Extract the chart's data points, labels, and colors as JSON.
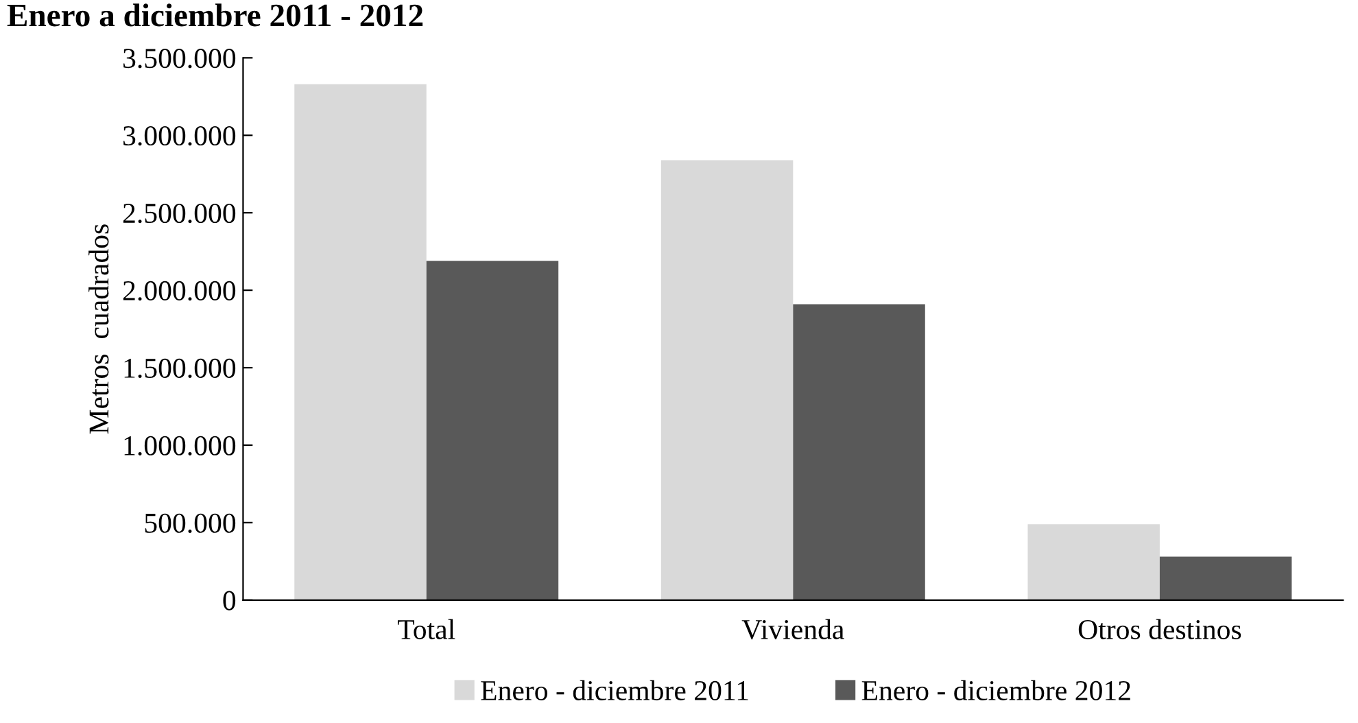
{
  "chart_data": {
    "type": "bar",
    "title": "Enero a diciembre 2011 - 2012",
    "ylabel": "Metros  cuadrados",
    "categories": [
      "Total",
      "Vivienda",
      "Otros destinos"
    ],
    "series": [
      {
        "name": "Enero - diciembre 2011",
        "color": "#d9d9d9",
        "values": [
          3330000,
          2840000,
          490000
        ]
      },
      {
        "name": "Enero - diciembre 2012",
        "color": "#595959",
        "values": [
          2190000,
          1910000,
          280000
        ]
      }
    ],
    "ylim": [
      0,
      3500000
    ],
    "yticks": [
      {
        "value": 0,
        "label": "0"
      },
      {
        "value": 500000,
        "label": "500.000"
      },
      {
        "value": 1000000,
        "label": "1.000.000"
      },
      {
        "value": 1500000,
        "label": "1.500.000"
      },
      {
        "value": 2000000,
        "label": "2.000.000"
      },
      {
        "value": 2500000,
        "label": "2.500.000"
      },
      {
        "value": 3000000,
        "label": "3.000.000"
      },
      {
        "value": 3500000,
        "label": "3.500.000"
      }
    ],
    "legend": "bottom",
    "grid": false
  }
}
